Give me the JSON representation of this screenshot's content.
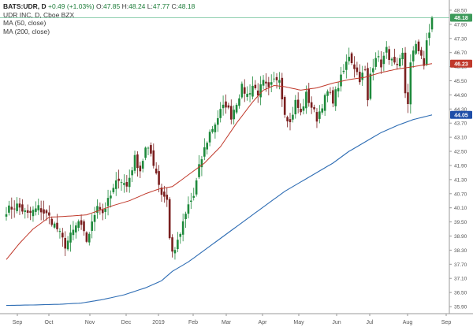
{
  "legend": {
    "symbol": "BATS:UDR, D",
    "change": "+0.49 (+1.03%)",
    "o_label": "O:",
    "o_value": "47.85",
    "h_label": "H:",
    "h_value": "48.24",
    "l_label": "L:",
    "l_value": "47.77",
    "c_label": "C:",
    "c_value": "48.18",
    "company": "UDR INC, D, Cboe BZX",
    "ma50_label": "MA (50, close)",
    "ma200_label": "MA (200, close)"
  },
  "colors": {
    "up": "#1e8a3c",
    "down": "#7a1f1f",
    "ma50": "#c0392b",
    "ma200": "#2e6db4",
    "last_price_badge": "#3c9a5a",
    "ma50_badge": "#c0392b",
    "ma200_badge": "#1f4ea8",
    "grid": "#d9d9d9",
    "axis_text": "#555555",
    "reference_line": "#6cc197"
  },
  "chart_data": {
    "type": "candlestick",
    "x_axis_labels": [
      "Sep",
      "Oct",
      "Nov",
      "Dec",
      "2019",
      "Feb",
      "Mar",
      "Apr",
      "May",
      "Jun",
      "Jul",
      "Aug",
      "Sep"
    ],
    "y_ticks": [
      "48.50",
      "47.90",
      "47.30",
      "46.70",
      "46.10",
      "45.50",
      "44.90",
      "44.30",
      "43.70",
      "43.10",
      "42.50",
      "41.90",
      "41.30",
      "40.70",
      "40.10",
      "39.50",
      "38.90",
      "38.30",
      "37.70",
      "37.10",
      "36.50",
      "35.90"
    ],
    "ylim": [
      35.6,
      48.8
    ],
    "badges": [
      {
        "label": "48.18",
        "value": 48.18,
        "kind": "last"
      },
      {
        "label": "46.23",
        "value": 46.23,
        "kind": "ma50"
      },
      {
        "label": "44.05",
        "value": 44.05,
        "kind": "ma200"
      }
    ],
    "close_anchors": [
      [
        0,
        40.0
      ],
      [
        4,
        40.2
      ],
      [
        8,
        39.8
      ],
      [
        12,
        40.1
      ],
      [
        16,
        39.7
      ],
      [
        19,
        39.2
      ],
      [
        22,
        38.5
      ],
      [
        24,
        38.9
      ],
      [
        27,
        39.5
      ],
      [
        30,
        38.7
      ],
      [
        32,
        39.4
      ],
      [
        34,
        40.3
      ],
      [
        36,
        39.9
      ],
      [
        39,
        40.6
      ],
      [
        42,
        41.4
      ],
      [
        45,
        41.0
      ],
      [
        48,
        42.2
      ],
      [
        50,
        41.7
      ],
      [
        52,
        42.6
      ],
      [
        54,
        42.4
      ],
      [
        56,
        41.6
      ],
      [
        58,
        40.7
      ],
      [
        60,
        40.5
      ],
      [
        61,
        38.8
      ],
      [
        62,
        38.2
      ],
      [
        64,
        38.6
      ],
      [
        66,
        39.4
      ],
      [
        68,
        40.2
      ],
      [
        70,
        40.6
      ],
      [
        72,
        41.8
      ],
      [
        74,
        42.6
      ],
      [
        76,
        43.3
      ],
      [
        78,
        43.7
      ],
      [
        80,
        44.2
      ],
      [
        82,
        44.5
      ],
      [
        84,
        44.0
      ],
      [
        86,
        44.6
      ],
      [
        88,
        45.2
      ],
      [
        90,
        44.9
      ],
      [
        92,
        45.3
      ],
      [
        94,
        45.0
      ],
      [
        96,
        45.4
      ],
      [
        98,
        45.1
      ],
      [
        100,
        45.5
      ],
      [
        102,
        45.7
      ],
      [
        103,
        44.8
      ],
      [
        104,
        44.2
      ],
      [
        106,
        43.7
      ],
      [
        108,
        44.6
      ],
      [
        110,
        44.1
      ],
      [
        112,
        44.9
      ],
      [
        114,
        44.4
      ],
      [
        116,
        43.9
      ],
      [
        118,
        44.5
      ],
      [
        120,
        45.0
      ],
      [
        122,
        44.7
      ],
      [
        124,
        45.3
      ],
      [
        126,
        45.9
      ],
      [
        128,
        46.6
      ],
      [
        130,
        46.1
      ],
      [
        132,
        45.6
      ],
      [
        134,
        45.9
      ],
      [
        135,
        44.6
      ],
      [
        136,
        45.8
      ],
      [
        138,
        46.6
      ],
      [
        140,
        46.2
      ],
      [
        142,
        46.8
      ],
      [
        144,
        46.3
      ],
      [
        146,
        46.0
      ],
      [
        148,
        46.6
      ],
      [
        149,
        45.0
      ],
      [
        150,
        44.6
      ],
      [
        151,
        46.2
      ],
      [
        153,
        47.1
      ],
      [
        155,
        46.6
      ],
      [
        156,
        46.0
      ],
      [
        157,
        47.2
      ],
      [
        158,
        47.6
      ],
      [
        159,
        48.18
      ]
    ],
    "ma50_anchors": [
      [
        0,
        37.9
      ],
      [
        5,
        38.6
      ],
      [
        10,
        39.2
      ],
      [
        16,
        39.7
      ],
      [
        24,
        39.75
      ],
      [
        30,
        39.8
      ],
      [
        35,
        40.0
      ],
      [
        40,
        40.2
      ],
      [
        46,
        40.4
      ],
      [
        52,
        40.7
      ],
      [
        57,
        40.9
      ],
      [
        62,
        41.0
      ],
      [
        68,
        41.5
      ],
      [
        74,
        42.0
      ],
      [
        80,
        42.7
      ],
      [
        86,
        43.7
      ],
      [
        92,
        44.6
      ],
      [
        96,
        45.1
      ],
      [
        100,
        45.3
      ],
      [
        104,
        45.25
      ],
      [
        110,
        45.1
      ],
      [
        116,
        45.2
      ],
      [
        122,
        45.4
      ],
      [
        128,
        45.55
      ],
      [
        134,
        45.65
      ],
      [
        140,
        45.85
      ],
      [
        146,
        46.0
      ],
      [
        152,
        46.1
      ],
      [
        159,
        46.23
      ]
    ],
    "ma200_anchors": [
      [
        0,
        35.95
      ],
      [
        10,
        35.97
      ],
      [
        20,
        36.0
      ],
      [
        28,
        36.05
      ],
      [
        36,
        36.2
      ],
      [
        44,
        36.4
      ],
      [
        52,
        36.7
      ],
      [
        58,
        37.0
      ],
      [
        62,
        37.4
      ],
      [
        68,
        37.8
      ],
      [
        74,
        38.3
      ],
      [
        80,
        38.8
      ],
      [
        86,
        39.3
      ],
      [
        92,
        39.8
      ],
      [
        98,
        40.3
      ],
      [
        104,
        40.8
      ],
      [
        110,
        41.2
      ],
      [
        116,
        41.6
      ],
      [
        122,
        42.0
      ],
      [
        128,
        42.5
      ],
      [
        134,
        42.9
      ],
      [
        140,
        43.3
      ],
      [
        146,
        43.6
      ],
      [
        152,
        43.85
      ],
      [
        159,
        44.05
      ]
    ],
    "bar_count": 160
  }
}
